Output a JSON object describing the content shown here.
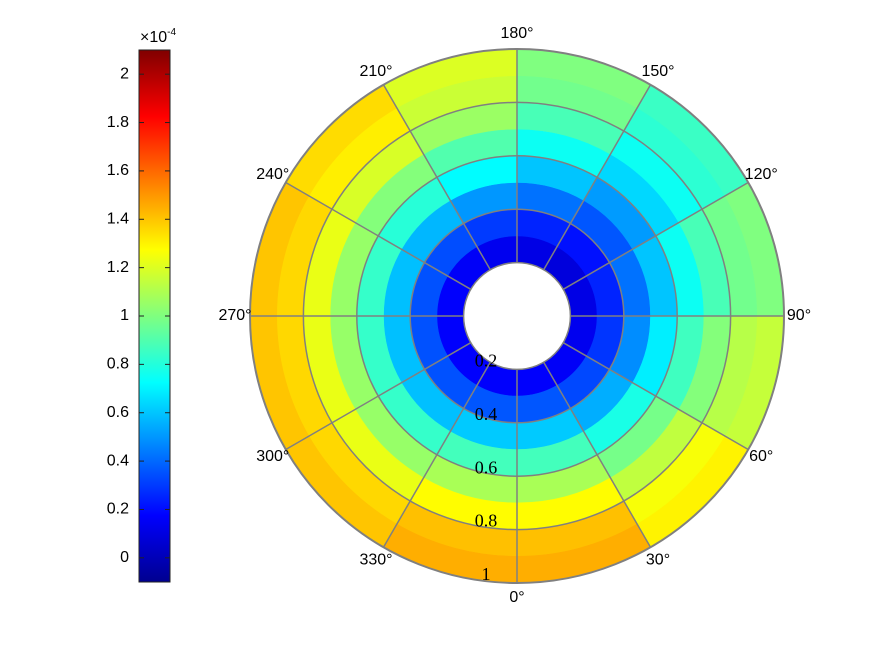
{
  "chart_data": {
    "type": "polar-heatmap",
    "theta_edges": [
      0,
      30,
      60,
      90,
      120,
      150,
      180,
      210,
      240,
      270,
      300,
      330,
      360
    ],
    "r_edges": [
      0.2,
      0.3,
      0.4,
      0.5,
      0.6,
      0.7,
      0.8,
      0.9,
      1
    ],
    "values": [
      [
        0.17,
        0.16,
        0.14,
        0.12,
        0.1,
        0.12,
        0.14,
        0.16,
        0.17,
        0.17,
        0.17,
        0.17
      ],
      [
        0.36,
        0.33,
        0.29,
        0.25,
        0.21,
        0.25,
        0.3,
        0.34,
        0.35,
        0.35,
        0.35,
        0.36
      ],
      [
        0.61,
        0.55,
        0.48,
        0.42,
        0.36,
        0.42,
        0.5,
        0.57,
        0.59,
        0.59,
        0.59,
        0.61
      ],
      [
        0.87,
        0.78,
        0.69,
        0.6,
        0.51,
        0.6,
        0.72,
        0.81,
        0.84,
        0.84,
        0.84,
        0.87
      ],
      [
        1.09,
        0.98,
        0.86,
        0.75,
        0.64,
        0.75,
        0.9,
        1.01,
        1.05,
        1.05,
        1.05,
        1.09
      ],
      [
        1.28,
        1.14,
        1.01,
        0.88,
        0.75,
        0.88,
        1.06,
        1.19,
        1.23,
        1.23,
        1.23,
        1.28
      ],
      [
        1.41,
        1.26,
        1.12,
        0.97,
        0.82,
        0.97,
        1.16,
        1.31,
        1.36,
        1.36,
        1.36,
        1.41
      ],
      [
        1.45,
        1.3,
        1.15,
        1.0,
        0.85,
        1.0,
        1.2,
        1.35,
        1.4,
        1.4,
        1.4,
        1.45
      ]
    ],
    "rlim": [
      0.2,
      1
    ],
    "rticks": [
      0.2,
      0.4,
      0.6,
      0.8,
      1
    ],
    "thetaticks": [
      {
        "value": 0,
        "label": "0°"
      },
      {
        "value": 30,
        "label": "30°"
      },
      {
        "value": 60,
        "label": "60°"
      },
      {
        "value": 90,
        "label": "90°"
      },
      {
        "value": 120,
        "label": "120°"
      },
      {
        "value": 150,
        "label": "150°"
      },
      {
        "value": 180,
        "label": "180°"
      },
      {
        "value": 210,
        "label": "210°"
      },
      {
        "value": 240,
        "label": "240°"
      },
      {
        "value": 270,
        "label": "270°"
      },
      {
        "value": 300,
        "label": "300°"
      },
      {
        "value": 330,
        "label": "330°"
      }
    ],
    "colormap": "jet",
    "clim": [
      -0.1,
      2.1
    ],
    "colorbar_ticks": [
      0,
      0.2,
      0.4,
      0.6,
      0.8,
      1,
      1.2,
      1.4,
      1.6,
      1.8,
      2
    ],
    "colorbar_multiplier": {
      "base": "×10",
      "exponent": "-4"
    },
    "grid_color": "#808080"
  }
}
